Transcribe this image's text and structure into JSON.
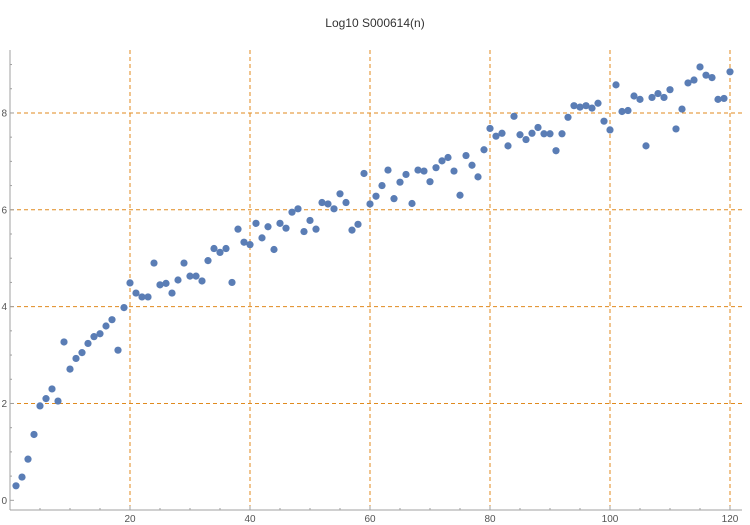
{
  "chart_data": {
    "type": "scatter",
    "title": "Log10 S000614(n)",
    "xlabel": "",
    "ylabel": "",
    "xlim": [
      0,
      122
    ],
    "ylim": [
      -0.2,
      9.3
    ],
    "x_ticks": [
      20,
      40,
      60,
      80,
      100,
      120
    ],
    "y_ticks": [
      0,
      2,
      4,
      6,
      8
    ],
    "grid": true,
    "colors": {
      "point": "#5a7db5",
      "grid": "#e08a1e",
      "axis": "#a0a0a0"
    },
    "series": [
      {
        "x": [
          1,
          2,
          3,
          4,
          5,
          6,
          7,
          8,
          9,
          10,
          11,
          12,
          13,
          14,
          15,
          16,
          17,
          18,
          19,
          20,
          21,
          22,
          23,
          24,
          25,
          26,
          27,
          28,
          29,
          30,
          31,
          32,
          33,
          34,
          35,
          36,
          37,
          38,
          39,
          40,
          41,
          42,
          43,
          44,
          45,
          46,
          47,
          48,
          49,
          50,
          51,
          52,
          53,
          54,
          55,
          56,
          57,
          58,
          59,
          60,
          61,
          62,
          63,
          64,
          65,
          66,
          67,
          68,
          69,
          70,
          71,
          72,
          73,
          74,
          75,
          76,
          77,
          78,
          79,
          80,
          81,
          82,
          83,
          84,
          85,
          86,
          87,
          88,
          89,
          90,
          91,
          92,
          93,
          94,
          95,
          96,
          97,
          98,
          99,
          100,
          101,
          102,
          103,
          104,
          105,
          106,
          107,
          108,
          109,
          110,
          111,
          112,
          113,
          114,
          115,
          116,
          117,
          118,
          119,
          120
        ],
        "y": [
          0.3,
          0.48,
          0.85,
          1.36,
          1.95,
          2.1,
          2.3,
          2.05,
          3.27,
          2.71,
          2.93,
          3.05,
          3.24,
          3.38,
          3.44,
          3.6,
          3.73,
          3.1,
          3.98,
          4.49,
          4.28,
          4.2,
          4.2,
          4.9,
          4.45,
          4.48,
          4.28,
          4.55,
          4.9,
          4.63,
          4.63,
          4.53,
          4.95,
          5.2,
          5.12,
          5.2,
          4.5,
          5.6,
          5.33,
          5.28,
          5.72,
          5.42,
          5.65,
          5.18,
          5.72,
          5.62,
          5.95,
          6.02,
          5.55,
          5.78,
          5.6,
          6.15,
          6.12,
          6.02,
          6.33,
          6.15,
          5.58,
          5.7,
          6.75,
          6.12,
          6.28,
          6.5,
          6.82,
          6.23,
          6.57,
          6.73,
          6.13,
          6.82,
          6.8,
          6.58,
          6.87,
          7.01,
          7.08,
          6.8,
          6.3,
          7.12,
          6.92,
          6.68,
          7.24,
          7.68,
          7.52,
          7.58,
          7.32,
          7.93,
          7.55,
          7.45,
          7.58,
          7.7,
          7.57,
          7.57,
          7.22,
          7.57,
          7.91,
          8.15,
          8.12,
          8.15,
          8.1,
          8.2,
          7.83,
          7.65,
          8.58,
          8.03,
          8.05,
          8.35,
          8.28,
          7.32,
          8.32,
          8.4,
          8.32,
          8.48,
          7.67,
          8.08,
          8.62,
          8.68,
          8.95,
          8.78,
          8.73,
          8.28,
          8.3,
          8.85
        ]
      }
    ]
  }
}
